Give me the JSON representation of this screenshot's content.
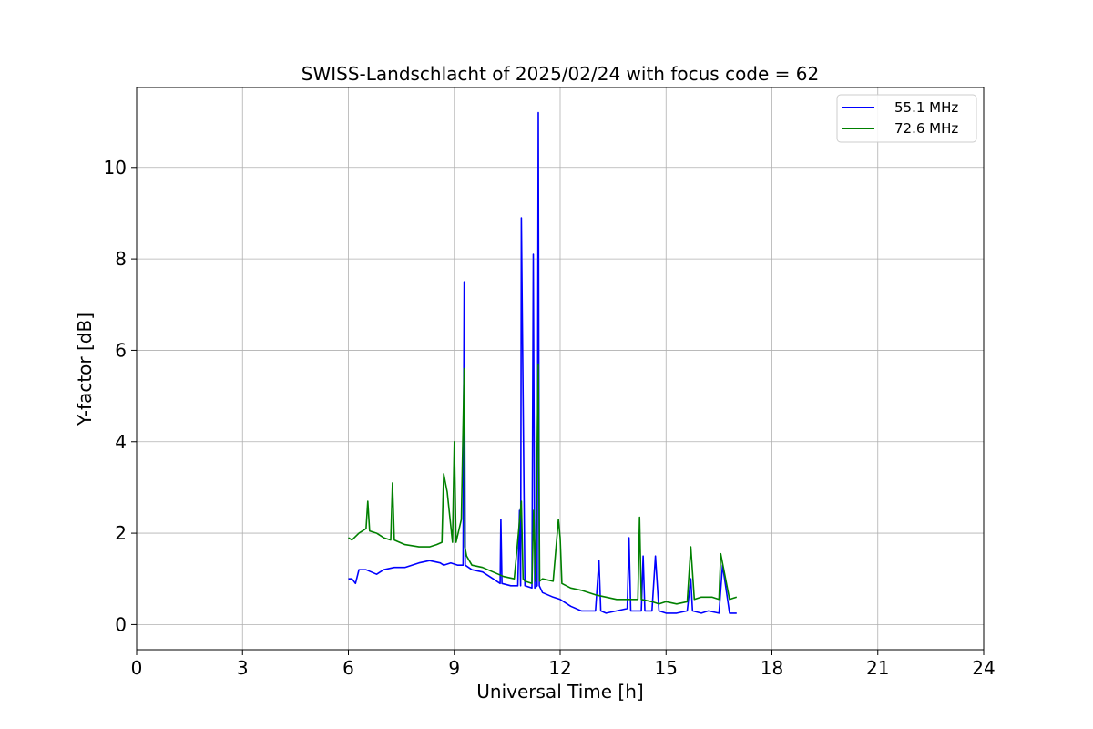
{
  "chart_data": {
    "type": "line",
    "title": "SWISS-Landschlacht of 2025/02/24 with focus code = 62",
    "xlabel": "Universal Time [h]",
    "ylabel": "Y-factor [dB]",
    "xlim": [
      0,
      24
    ],
    "ylim": [
      -0.55,
      11.75
    ],
    "xticks": [
      0,
      3,
      6,
      9,
      12,
      15,
      18,
      21,
      24
    ],
    "yticks": [
      0,
      2,
      4,
      6,
      8,
      10
    ],
    "grid": true,
    "legend_position": "top-right",
    "series": [
      {
        "name": "55.1 MHz",
        "color": "#0000ff",
        "x": [
          6.0,
          6.1,
          6.2,
          6.3,
          6.5,
          6.8,
          7.0,
          7.3,
          7.6,
          8.0,
          8.3,
          8.6,
          8.7,
          8.9,
          9.1,
          9.25,
          9.28,
          9.31,
          9.5,
          9.8,
          10.1,
          10.3,
          10.32,
          10.35,
          10.6,
          10.8,
          10.85,
          10.88,
          10.9,
          11.0,
          11.2,
          11.24,
          11.28,
          11.35,
          11.38,
          11.41,
          11.5,
          11.8,
          12.0,
          12.3,
          12.6,
          13.0,
          13.1,
          13.15,
          13.3,
          13.6,
          13.9,
          13.95,
          14.0,
          14.1,
          14.3,
          14.35,
          14.4,
          14.6,
          14.7,
          14.8,
          15.0,
          15.3,
          15.6,
          15.7,
          15.75,
          16.0,
          16.2,
          16.5,
          16.6,
          16.8,
          17.0
        ],
        "values": [
          1.0,
          1.0,
          0.9,
          1.2,
          1.2,
          1.1,
          1.2,
          1.25,
          1.25,
          1.35,
          1.4,
          1.35,
          1.3,
          1.35,
          1.3,
          1.3,
          7.5,
          1.3,
          1.2,
          1.15,
          1.0,
          0.9,
          2.3,
          0.9,
          0.85,
          0.85,
          2.5,
          0.85,
          8.9,
          0.85,
          0.8,
          8.1,
          0.8,
          0.85,
          11.2,
          0.85,
          0.7,
          0.6,
          0.55,
          0.4,
          0.3,
          0.3,
          1.4,
          0.3,
          0.25,
          0.3,
          0.35,
          1.9,
          0.3,
          0.3,
          0.3,
          1.5,
          0.3,
          0.3,
          1.5,
          0.3,
          0.25,
          0.25,
          0.3,
          1.0,
          0.3,
          0.25,
          0.3,
          0.25,
          1.3,
          0.25,
          0.25
        ]
      },
      {
        "name": "72.6 MHz",
        "color": "#008000",
        "x": [
          6.0,
          6.1,
          6.3,
          6.5,
          6.55,
          6.6,
          6.8,
          7.0,
          7.2,
          7.25,
          7.3,
          7.6,
          8.0,
          8.3,
          8.5,
          8.65,
          8.7,
          8.8,
          8.95,
          9.0,
          9.05,
          9.2,
          9.28,
          9.3,
          9.35,
          9.5,
          9.8,
          10.1,
          10.4,
          10.7,
          10.9,
          10.95,
          11.0,
          11.2,
          11.25,
          11.3,
          11.38,
          11.42,
          11.5,
          11.8,
          11.95,
          12.0,
          12.05,
          12.3,
          12.6,
          13.0,
          13.3,
          13.6,
          14.0,
          14.2,
          14.25,
          14.3,
          14.6,
          14.8,
          15.0,
          15.3,
          15.6,
          15.7,
          15.8,
          16.0,
          16.3,
          16.5,
          16.55,
          16.8,
          17.0
        ],
        "values": [
          1.9,
          1.85,
          2.0,
          2.1,
          2.7,
          2.05,
          2.0,
          1.9,
          1.85,
          3.1,
          1.85,
          1.75,
          1.7,
          1.7,
          1.75,
          1.8,
          3.3,
          2.9,
          1.8,
          4.0,
          1.8,
          2.3,
          5.6,
          1.7,
          1.5,
          1.3,
          1.25,
          1.15,
          1.05,
          1.0,
          2.7,
          1.0,
          0.95,
          0.9,
          2.5,
          0.95,
          5.7,
          0.95,
          1.0,
          0.95,
          2.3,
          1.9,
          0.9,
          0.8,
          0.75,
          0.65,
          0.6,
          0.55,
          0.55,
          0.55,
          2.35,
          0.55,
          0.5,
          0.45,
          0.5,
          0.45,
          0.5,
          1.7,
          0.55,
          0.6,
          0.6,
          0.55,
          1.55,
          0.55,
          0.6
        ]
      }
    ]
  }
}
